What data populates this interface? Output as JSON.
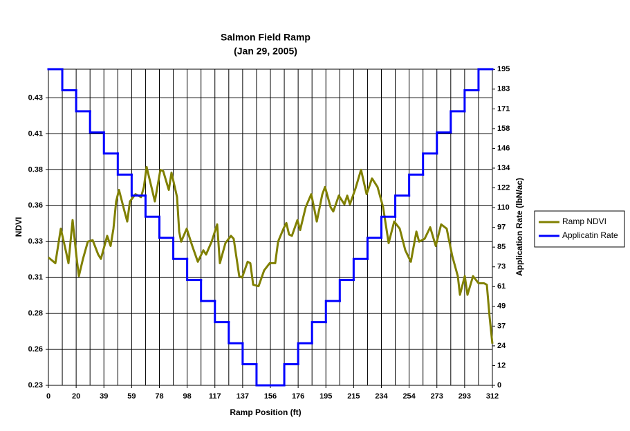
{
  "chart_data": {
    "type": "line",
    "title": "Salmon Field Ramp",
    "subtitle": "(Jan 29, 2005)",
    "x_label": "Ramp Position (ft)",
    "y_label": "NDVI",
    "y2_label": "Application Rate (lbN/ac)",
    "legend": "right",
    "grid": true,
    "xlim": [
      0,
      312
    ],
    "xticks": [
      0,
      {
        "value": 19.5,
        "label": "20"
      },
      39,
      {
        "value": 58.5,
        "label": "59"
      },
      78,
      {
        "value": 97.5,
        "label": "98"
      },
      117,
      {
        "value": 136.5,
        "label": "137"
      },
      156,
      {
        "value": 175.5,
        "label": "176"
      },
      195,
      {
        "value": 214.5,
        "label": "215"
      },
      234,
      {
        "value": 253.5,
        "label": "254"
      },
      273,
      {
        "value": 292.5,
        "label": "293"
      },
      312
    ],
    "ylim": [
      0.23,
      0.45
    ],
    "yticks": [
      0.23,
      {
        "value": 0.255,
        "label": "0.26"
      },
      0.28,
      {
        "value": 0.305,
        "label": "0.31"
      },
      0.33,
      {
        "value": 0.355,
        "label": "0.36"
      },
      0.38,
      {
        "value": 0.405,
        "label": "0.41"
      },
      0.43
    ],
    "y2lim": [
      0,
      195
    ],
    "y2ticks": [
      0,
      {
        "value": 12.18,
        "label": "12"
      },
      {
        "value": 24.36,
        "label": "24"
      },
      {
        "value": 36.54,
        "label": "37"
      },
      {
        "value": 48.72,
        "label": "49"
      },
      {
        "value": 60.9,
        "label": "61"
      },
      {
        "value": 73.08,
        "label": "73"
      },
      {
        "value": 85.26,
        "label": "85"
      },
      {
        "value": 97.44,
        "label": "97"
      },
      {
        "value": 109.62,
        "label": "110"
      },
      {
        "value": 121.8,
        "label": "122"
      },
      {
        "value": 133.98,
        "label": "134"
      },
      {
        "value": 146.16,
        "label": "146"
      },
      {
        "value": 158.34,
        "label": "158"
      },
      {
        "value": 170.52,
        "label": "171"
      },
      {
        "value": 182.7,
        "label": "183"
      },
      {
        "value": 194.88,
        "label": "195"
      }
    ],
    "series": [
      {
        "name": "Ramp NDVI",
        "color": "#808000",
        "x": [
          0,
          4.9,
          8.7,
          12.6,
          14.1,
          17.0,
          19.9,
          21.4,
          24.3,
          27.7,
          31.1,
          35.0,
          36.9,
          41.3,
          43.7,
          45.7,
          47.6,
          49.6,
          53.5,
          55.4,
          57.3,
          61.2,
          65.1,
          67.1,
          69.0,
          72.9,
          74.8,
          78.7,
          80.7,
          84.6,
          86.5,
          90.4,
          91.9,
          93.3,
          97.2,
          101.1,
          105.0,
          108.9,
          110.8,
          114.7,
          118.6,
          120.5,
          124.4,
          128.3,
          130.2,
          134.1,
          136.1,
          140.0,
          141.9,
          143.9,
          147.7,
          151.6,
          155.5,
          159.4,
          161.4,
          165.2,
          167.2,
          169.1,
          171.1,
          175.0,
          176.9,
          180.8,
          184.7,
          186.6,
          188.6,
          192.5,
          194.4,
          198.3,
          200.2,
          204.1,
          208.0,
          210.0,
          211.9,
          215.8,
          219.7,
          223.6,
          227.4,
          231.3,
          235.2,
          239.1,
          243.0,
          246.9,
          250.8,
          254.7,
          258.6,
          260.5,
          264.4,
          268.3,
          272.2,
          276.0,
          279.9,
          283.8,
          287.7,
          289.2,
          292.6,
          294.5,
          298.4,
          302.3,
          306.2,
          308.1,
          310.1,
          312.0
        ],
        "values": [
          0.319,
          0.315,
          0.339,
          0.322,
          0.315,
          0.345,
          0.318,
          0.306,
          0.318,
          0.33,
          0.331,
          0.321,
          0.318,
          0.334,
          0.327,
          0.339,
          0.358,
          0.366,
          0.351,
          0.344,
          0.358,
          0.363,
          0.361,
          0.368,
          0.382,
          0.366,
          0.358,
          0.38,
          0.379,
          0.366,
          0.378,
          0.361,
          0.337,
          0.33,
          0.339,
          0.327,
          0.316,
          0.324,
          0.321,
          0.33,
          0.342,
          0.315,
          0.329,
          0.334,
          0.332,
          0.306,
          0.305,
          0.316,
          0.315,
          0.3,
          0.299,
          0.31,
          0.315,
          0.315,
          0.33,
          0.339,
          0.343,
          0.335,
          0.334,
          0.345,
          0.338,
          0.354,
          0.363,
          0.354,
          0.344,
          0.363,
          0.368,
          0.354,
          0.351,
          0.362,
          0.356,
          0.362,
          0.356,
          0.367,
          0.38,
          0.363,
          0.374,
          0.368,
          0.354,
          0.329,
          0.344,
          0.339,
          0.324,
          0.316,
          0.337,
          0.33,
          0.332,
          0.34,
          0.327,
          0.342,
          0.339,
          0.32,
          0.306,
          0.293,
          0.306,
          0.293,
          0.306,
          0.301,
          0.301,
          0.3,
          0.277,
          0.259
        ]
      },
      {
        "name": "Applicatin Rate",
        "color": "#0000ff",
        "axis": "y2",
        "step": "post",
        "x": [
          0,
          9.75,
          19.5,
          29.25,
          39,
          48.75,
          58.5,
          68.25,
          78,
          87.75,
          97.5,
          107.25,
          117,
          126.75,
          136.5,
          146.25,
          165.75,
          175.5,
          185.25,
          195,
          204.75,
          214.5,
          224.25,
          234,
          243.75,
          253.5,
          263.25,
          273,
          282.75,
          292.5,
          302.25,
          312
        ],
        "values": [
          195,
          182,
          169,
          156,
          143,
          130,
          117,
          104,
          91,
          78,
          65,
          52,
          39,
          26,
          13,
          0,
          13,
          26,
          39,
          52,
          65,
          78,
          91,
          104,
          117,
          130,
          143,
          156,
          169,
          182,
          195,
          195
        ]
      }
    ]
  }
}
